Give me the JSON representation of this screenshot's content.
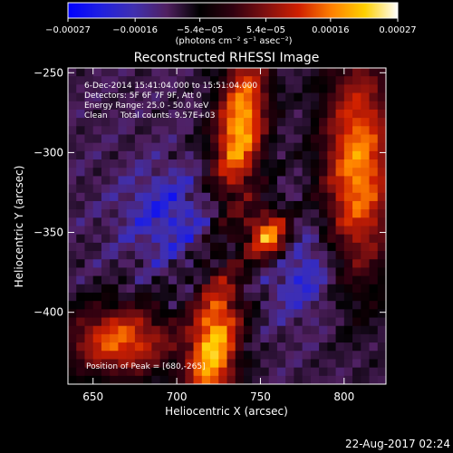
{
  "chart_data": {
    "type": "heatmap",
    "title": "Reconstructed RHESSI Image",
    "xlabel": "Heliocentric X (arcsec)",
    "ylabel": "Heliocentric Y (arcsec)",
    "xlim": [
      635,
      825
    ],
    "ylim": [
      -445,
      -247
    ],
    "x_ticks": [
      650,
      700,
      750,
      800
    ],
    "y_ticks": [
      -250,
      -300,
      -350,
      -400
    ],
    "x_tick_labels": [
      "650",
      "700",
      "750",
      "800"
    ],
    "y_tick_labels": [
      "−250",
      "−300",
      "−350",
      "−400"
    ],
    "colorbar": {
      "ticks": [
        -0.00027,
        -0.00016,
        -5.4e-05,
        5.4e-05,
        0.00016,
        0.00027
      ],
      "tick_labels": [
        "−0.00027",
        "−0.00016",
        "−5.4e−05",
        "5.4e−05",
        "0.00016",
        "0.00027"
      ],
      "unit_label": "(photons cm⁻² s⁻¹ asec⁻²)",
      "range": [
        -0.00027,
        0.00027
      ],
      "stops": [
        "#0000ff",
        "#2020e0",
        "#4030b0",
        "#502060",
        "#000000",
        "#300010",
        "#801010",
        "#d02000",
        "#ff8000",
        "#ffd000",
        "#ffffff"
      ]
    },
    "annotations": [
      "6-Dec-2014 15:41:04.000 to 15:51:04.000",
      "Detectors: 5F 6F 7F 9F, Att 0",
      "Energy Range: 25.0 - 50.0 keV",
      "Clean     Total counts: 9.57E+03"
    ],
    "peak_label": "Position of Peak = [680,-265]",
    "peak": [
      680,
      -265
    ]
  },
  "timestamp": "22-Aug-2017 02:24"
}
